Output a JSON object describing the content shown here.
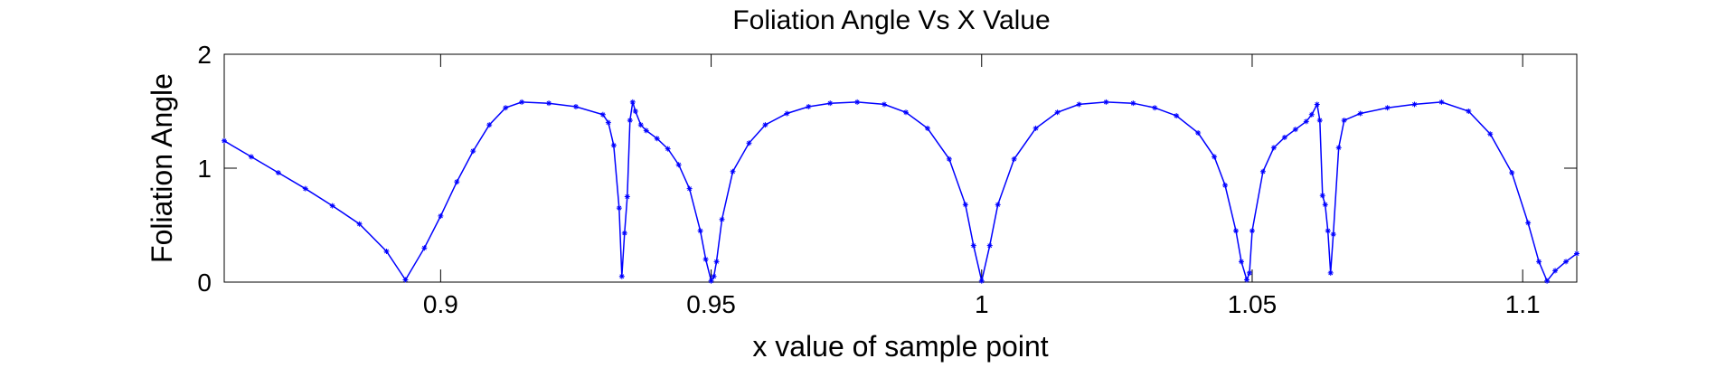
{
  "chart_data": {
    "type": "line",
    "title": "Foliation Angle Vs X Value",
    "xlabel": "x value of sample point",
    "ylabel": "Foliation Angle",
    "xlim": [
      0.86,
      1.11
    ],
    "ylim": [
      0,
      2
    ],
    "xticks": [
      0.9,
      0.95,
      1,
      1.05,
      1.1
    ],
    "xtick_labels": [
      "0.9",
      "0.95",
      "1",
      "1.05",
      "1.1"
    ],
    "yticks": [
      0,
      1,
      2
    ],
    "ytick_labels": [
      "0",
      "1",
      "2"
    ],
    "grid": false,
    "legend": "none",
    "marker": "*",
    "color": "#0000ff",
    "series": [
      {
        "values_x": [
          0.86,
          0.865,
          0.87,
          0.875,
          0.88,
          0.885,
          0.89,
          0.8935,
          0.897,
          0.9,
          0.903,
          0.906,
          0.909,
          0.912,
          0.915,
          0.92,
          0.925,
          0.93,
          0.931,
          0.932,
          0.933,
          0.9335,
          0.934,
          0.9345,
          0.935,
          0.9355,
          0.936,
          0.937,
          0.938,
          0.94,
          0.942,
          0.944,
          0.946,
          0.948,
          0.949,
          0.95,
          0.9505,
          0.951,
          0.952,
          0.954,
          0.957,
          0.96,
          0.964,
          0.968,
          0.972,
          0.977,
          0.982,
          0.986,
          0.99,
          0.994,
          0.997,
          0.9985,
          1.0,
          1.0015,
          1.003,
          1.006,
          1.01,
          1.014,
          1.018,
          1.023,
          1.028,
          1.032,
          1.036,
          1.04,
          1.043,
          1.045,
          1.047,
          1.048,
          1.049,
          1.0495,
          1.05,
          1.052,
          1.054,
          1.056,
          1.058,
          1.06,
          1.061,
          1.062,
          1.0625,
          1.063,
          1.0635,
          1.064,
          1.0645,
          1.065,
          1.066,
          1.067,
          1.07,
          1.075,
          1.08,
          1.085,
          1.09,
          1.094,
          1.098,
          1.101,
          1.103,
          1.1045,
          1.106,
          1.108,
          1.11
        ],
        "values_y": [
          1.24,
          1.1,
          0.96,
          0.82,
          0.67,
          0.51,
          0.27,
          0.02,
          0.3,
          0.58,
          0.88,
          1.15,
          1.38,
          1.53,
          1.58,
          1.57,
          1.54,
          1.47,
          1.4,
          1.2,
          0.65,
          0.05,
          0.43,
          0.75,
          1.42,
          1.58,
          1.5,
          1.38,
          1.33,
          1.26,
          1.17,
          1.03,
          0.82,
          0.45,
          0.2,
          0.01,
          0.05,
          0.18,
          0.55,
          0.97,
          1.22,
          1.38,
          1.48,
          1.54,
          1.57,
          1.58,
          1.56,
          1.49,
          1.35,
          1.08,
          0.68,
          0.32,
          0.01,
          0.32,
          0.68,
          1.08,
          1.35,
          1.49,
          1.56,
          1.58,
          1.57,
          1.53,
          1.46,
          1.31,
          1.1,
          0.85,
          0.45,
          0.18,
          0.02,
          0.08,
          0.45,
          0.97,
          1.18,
          1.27,
          1.34,
          1.41,
          1.47,
          1.56,
          1.42,
          0.76,
          0.68,
          0.45,
          0.08,
          0.42,
          1.18,
          1.42,
          1.48,
          1.53,
          1.56,
          1.58,
          1.5,
          1.3,
          0.96,
          0.52,
          0.18,
          0.01,
          0.1,
          0.18,
          0.25
        ]
      }
    ]
  }
}
